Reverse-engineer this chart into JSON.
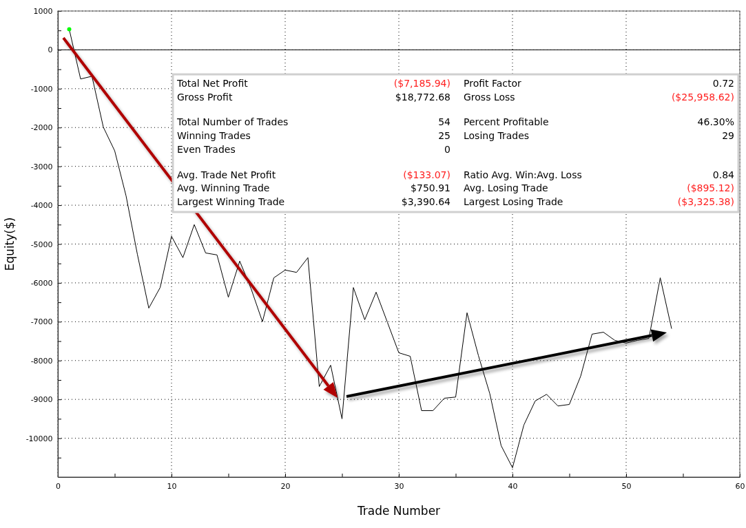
{
  "chart_data": {
    "type": "line",
    "xlabel": "Trade Number",
    "ylabel": "Equity($)",
    "x": [
      1,
      2,
      3,
      4,
      5,
      6,
      7,
      8,
      9,
      10,
      11,
      12,
      13,
      14,
      15,
      16,
      17,
      18,
      19,
      20,
      21,
      22,
      23,
      24,
      25,
      26,
      27,
      28,
      29,
      30,
      31,
      32,
      33,
      34,
      35,
      36,
      37,
      38,
      39,
      40,
      41,
      42,
      43,
      44,
      45,
      46,
      47,
      48,
      49,
      50,
      51,
      52,
      53,
      54
    ],
    "series": [
      {
        "color": "#000000",
        "values": [
          530,
          -750,
          -680,
          -1990,
          -2600,
          -3760,
          -5270,
          -6650,
          -6120,
          -4800,
          -5350,
          -4500,
          -5230,
          -5280,
          -6370,
          -5440,
          -6150,
          -7000,
          -5870,
          -5670,
          -5730,
          -5350,
          -8670,
          -8120,
          -9500,
          -6120,
          -6950,
          -6240,
          -7020,
          -7800,
          -7890,
          -9290,
          -9290,
          -8970,
          -8940,
          -6770,
          -7870,
          -8850,
          -10190,
          -10760,
          -9660,
          -9040,
          -8870,
          -9170,
          -9130,
          -8400,
          -7320,
          -7270,
          -7480,
          -7550,
          -7480,
          -7430,
          -5870,
          -7180
        ]
      },
      {
        "type": "scatter",
        "marker": "circle",
        "color": "#00ff00",
        "x": [
          1
        ],
        "values": [
          530
        ]
      }
    ],
    "xlim": [
      0,
      60
    ],
    "xticks": [
      0,
      {
        "value": 5,
        "label": null
      },
      10,
      {
        "value": 15,
        "label": null
      },
      20,
      {
        "value": 25,
        "label": null
      },
      30,
      {
        "value": 35,
        "label": null
      },
      40,
      {
        "value": 45,
        "label": null
      },
      50,
      {
        "value": 55,
        "label": null
      },
      60
    ],
    "ylim": [
      -11000,
      1000
    ],
    "yticks": [
      1000,
      {
        "value": 500,
        "label": null
      },
      0,
      {
        "value": -500,
        "label": null
      },
      -1000,
      {
        "value": -1500,
        "label": null
      },
      -2000,
      {
        "value": -2500,
        "label": null
      },
      -3000,
      {
        "value": -3500,
        "label": null
      },
      -4000,
      {
        "value": -4500,
        "label": null
      },
      -5000,
      {
        "value": -5500,
        "label": null
      },
      -6000,
      {
        "value": -6500,
        "label": null
      },
      -7000,
      {
        "value": -7500,
        "label": null
      },
      -8000,
      {
        "value": -8500,
        "label": null
      },
      -9000,
      {
        "value": -9500,
        "label": null
      },
      -10000,
      {
        "value": -10500,
        "label": null
      }
    ],
    "ref_lines": [
      {
        "axis": "y",
        "value": 0,
        "color": "#000000",
        "line_style": "solid"
      }
    ],
    "grid": true,
    "marker": "none",
    "line_style": "solid",
    "annotations": [
      "Total Net Profit",
      "($7,185.94)",
      "Profit Factor",
      "0.72",
      "Gross Profit",
      "$18,772.68",
      "Gross Loss",
      "($25,958.62)",
      "Total Number of Trades",
      "54",
      "Percent Profitable",
      "46.30%",
      "Winning Trades",
      "25",
      "Losing Trades",
      "29",
      "Even Trades",
      "0",
      "Avg. Trade Net Profit",
      "($133.07)",
      "Ratio Avg. Win:Avg. Loss",
      "0.84",
      "Avg. Winning Trade",
      "$750.91",
      "Avg. Losing Trade",
      "($895.12)",
      "Largest Winning Trade",
      "$3,390.64",
      "Largest Losing Trade",
      "($3,325.38)"
    ]
  }
}
